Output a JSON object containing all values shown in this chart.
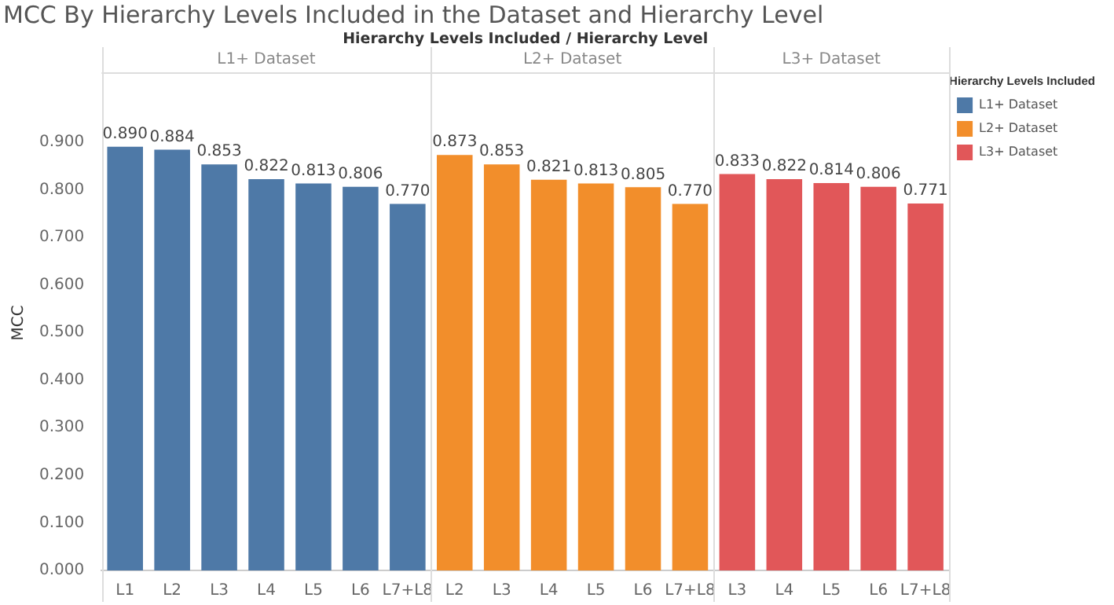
{
  "chart_data": {
    "type": "bar",
    "title": "MCC By Hierarchy Levels Included in the Dataset and Hierarchy Level",
    "xlabel": "Hierarchy Levels Included / Hierarchy Level",
    "ylabel": "MCC",
    "legend_title": "Hierarchy Levels Included",
    "categories": [
      "L1",
      "L2",
      "L3",
      "L4",
      "L5",
      "L6",
      "L7+L8",
      "L2",
      "L3",
      "L4",
      "L5",
      "L6",
      "L7+L8",
      "L3",
      "L4",
      "L5",
      "L6",
      "L7+L8"
    ],
    "series": [
      {
        "name": "L1+ Dataset",
        "color": "#4e79a7",
        "values": [
          0.89,
          0.884,
          0.853,
          0.822,
          0.813,
          0.806,
          0.77,
          null,
          null,
          null,
          null,
          null,
          null,
          null,
          null,
          null,
          null,
          null
        ],
        "value_labels": [
          "0.890",
          "0.884",
          "0.853",
          "0.822",
          "0.813",
          "0.806",
          "0.770",
          null,
          null,
          null,
          null,
          null,
          null,
          null,
          null,
          null,
          null,
          null
        ]
      },
      {
        "name": "L2+ Dataset",
        "color": "#f28e2b",
        "values": [
          null,
          null,
          null,
          null,
          null,
          null,
          null,
          0.873,
          0.853,
          0.821,
          0.813,
          0.805,
          0.77,
          null,
          null,
          null,
          null,
          null
        ],
        "value_labels": [
          null,
          null,
          null,
          null,
          null,
          null,
          null,
          "0.873",
          "0.853",
          "0.821",
          "0.813",
          "0.805",
          "0.770",
          null,
          null,
          null,
          null,
          null
        ]
      },
      {
        "name": "L3+ Dataset",
        "color": "#e15759",
        "values": [
          null,
          null,
          null,
          null,
          null,
          null,
          null,
          null,
          null,
          null,
          null,
          null,
          null,
          0.833,
          0.822,
          0.814,
          0.806,
          0.771
        ],
        "value_labels": [
          null,
          null,
          null,
          null,
          null,
          null,
          null,
          null,
          null,
          null,
          null,
          null,
          null,
          "0.833",
          "0.822",
          "0.814",
          "0.806",
          "0.771"
        ]
      }
    ],
    "ylim": [
      0,
      1.04
    ],
    "yticks": [
      {
        "value": 0,
        "label": "0.000"
      },
      {
        "value": 0.1,
        "label": "0.100"
      },
      {
        "value": 0.2,
        "label": "0.200"
      },
      {
        "value": 0.3,
        "label": "0.300"
      },
      {
        "value": 0.4,
        "label": "0.400"
      },
      {
        "value": 0.5,
        "label": "0.500"
      },
      {
        "value": 0.6,
        "label": "0.600"
      },
      {
        "value": 0.7,
        "label": "0.700"
      },
      {
        "value": 0.8,
        "label": "0.800"
      },
      {
        "value": 0.9,
        "label": "0.900"
      }
    ],
    "grid": false,
    "legend": "right"
  }
}
